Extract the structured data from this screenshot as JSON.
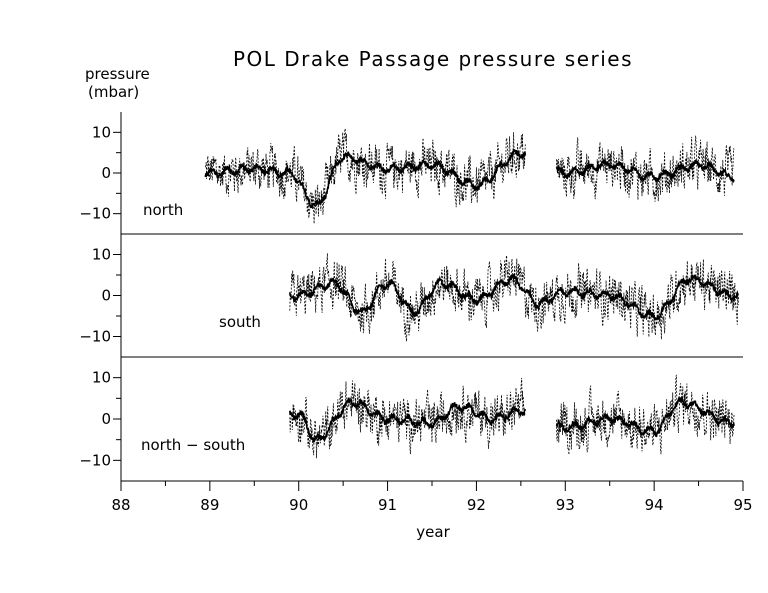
{
  "chart_data": {
    "type": "line",
    "title": "POL Drake Passage pressure series",
    "ylabel_line1": "pressure",
    "ylabel_line2": "(mbar)",
    "xlabel": "year",
    "xlim": [
      88,
      95
    ],
    "xticks": [
      "88",
      "89",
      "90",
      "91",
      "92",
      "93",
      "94",
      "95"
    ],
    "panels": [
      {
        "label": "north",
        "ylim": [
          -15,
          15
        ],
        "yticks": [
          "10",
          "0",
          "−10"
        ],
        "segments": [
          [
            88.95,
            92.55
          ],
          [
            92.9,
            94.9
          ]
        ],
        "series": [
          {
            "style": "dashed",
            "description": "raw pressure"
          },
          {
            "style": "solid",
            "description": "smoothed"
          }
        ],
        "approx_values": [
          {
            "x": 89.0,
            "y": 0
          },
          {
            "x": 89.5,
            "y": 1
          },
          {
            "x": 89.9,
            "y": 0
          },
          {
            "x": 90.2,
            "y": -8
          },
          {
            "x": 90.5,
            "y": 4
          },
          {
            "x": 91.0,
            "y": 1
          },
          {
            "x": 91.5,
            "y": 2
          },
          {
            "x": 92.0,
            "y": -3
          },
          {
            "x": 92.5,
            "y": 5
          },
          {
            "x": 93.0,
            "y": 0
          },
          {
            "x": 93.5,
            "y": 2
          },
          {
            "x": 94.0,
            "y": -1
          },
          {
            "x": 94.5,
            "y": 2
          },
          {
            "x": 94.9,
            "y": -1
          }
        ]
      },
      {
        "label": "south",
        "ylim": [
          -15,
          15
        ],
        "yticks": [
          "10",
          "0",
          "−10"
        ],
        "segments": [
          [
            89.9,
            94.95
          ]
        ],
        "series": [
          {
            "style": "dashed",
            "description": "raw pressure"
          },
          {
            "style": "solid",
            "description": "smoothed"
          }
        ],
        "approx_values": [
          {
            "x": 90.0,
            "y": 0
          },
          {
            "x": 90.4,
            "y": 3
          },
          {
            "x": 90.7,
            "y": -4
          },
          {
            "x": 91.0,
            "y": 3
          },
          {
            "x": 91.3,
            "y": -4
          },
          {
            "x": 91.6,
            "y": 3
          },
          {
            "x": 92.0,
            "y": -1
          },
          {
            "x": 92.4,
            "y": 4
          },
          {
            "x": 92.7,
            "y": -2
          },
          {
            "x": 93.0,
            "y": 1
          },
          {
            "x": 93.5,
            "y": 0
          },
          {
            "x": 94.0,
            "y": -5
          },
          {
            "x": 94.4,
            "y": 4
          },
          {
            "x": 94.9,
            "y": 0
          }
        ]
      },
      {
        "label": "north − south",
        "ylim": [
          -15,
          15
        ],
        "yticks": [
          "10",
          "0",
          "−10"
        ],
        "segments": [
          [
            89.9,
            92.55
          ],
          [
            92.9,
            94.9
          ]
        ],
        "series": [
          {
            "style": "dashed",
            "description": "raw pressure difference"
          },
          {
            "style": "solid",
            "description": "smoothed"
          }
        ],
        "approx_values": [
          {
            "x": 90.0,
            "y": 1
          },
          {
            "x": 90.2,
            "y": -5
          },
          {
            "x": 90.6,
            "y": 4
          },
          {
            "x": 91.0,
            "y": 0
          },
          {
            "x": 91.5,
            "y": -1
          },
          {
            "x": 91.8,
            "y": 3
          },
          {
            "x": 92.2,
            "y": 0
          },
          {
            "x": 92.5,
            "y": 2
          },
          {
            "x": 93.0,
            "y": -2
          },
          {
            "x": 93.5,
            "y": 0
          },
          {
            "x": 94.0,
            "y": -3
          },
          {
            "x": 94.3,
            "y": 4
          },
          {
            "x": 94.9,
            "y": -1
          }
        ]
      }
    ],
    "grid": false,
    "legend": "none"
  }
}
